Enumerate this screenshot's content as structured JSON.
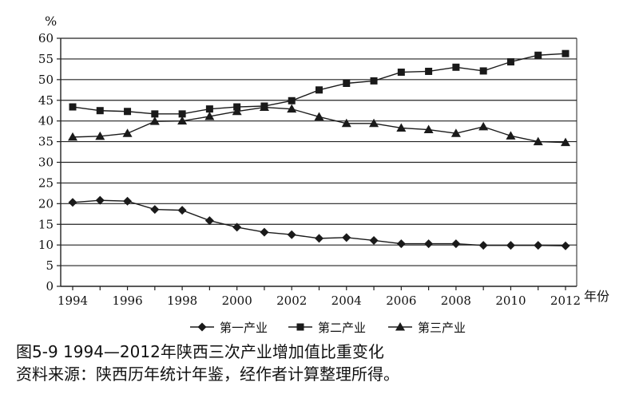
{
  "chart_data": {
    "type": "line",
    "ylabel": "%",
    "xlabel": "年份",
    "ylim": [
      0,
      60
    ],
    "yticks": [
      0,
      5,
      10,
      15,
      20,
      25,
      30,
      35,
      40,
      45,
      50,
      55,
      60
    ],
    "x": [
      1994,
      1995,
      1996,
      1997,
      1998,
      1999,
      2000,
      2001,
      2002,
      2003,
      2004,
      2005,
      2006,
      2007,
      2008,
      2009,
      2010,
      2011,
      2012
    ],
    "xticks": [
      1994,
      1996,
      1998,
      2000,
      2002,
      2004,
      2006,
      2008,
      2010,
      2012
    ],
    "grid": "horizontal",
    "legend": "bottom",
    "series": [
      {
        "name": "第一产业",
        "marker": "diamond",
        "values": [
          20.3,
          20.8,
          20.6,
          18.6,
          18.4,
          15.9,
          14.3,
          13.1,
          12.5,
          11.6,
          11.8,
          11.1,
          10.3,
          10.3,
          10.3,
          9.9,
          9.9,
          9.9,
          9.8
        ]
      },
      {
        "name": "第二产业",
        "marker": "square",
        "values": [
          43.4,
          42.5,
          42.3,
          41.7,
          41.7,
          42.9,
          43.4,
          43.6,
          44.9,
          47.5,
          49.1,
          49.7,
          51.8,
          52.0,
          53.0,
          52.1,
          54.3,
          55.9,
          56.3
        ]
      },
      {
        "name": "第三产业",
        "marker": "triangle",
        "values": [
          36.1,
          36.3,
          37.0,
          39.9,
          40.0,
          41.1,
          42.3,
          43.3,
          42.9,
          41.0,
          39.4,
          39.4,
          38.3,
          37.9,
          37.0,
          38.6,
          36.4,
          35.0,
          34.8
        ]
      }
    ]
  },
  "caption": {
    "line1": "图5-9  1994—2012年陕西三次产业增加值比重变化",
    "line2": "资料来源：陕西历年统计年鉴，经作者计算整理所得。"
  },
  "colors": {
    "series": "#1a1a1a",
    "grid": "#222222",
    "axis": "#222222"
  }
}
